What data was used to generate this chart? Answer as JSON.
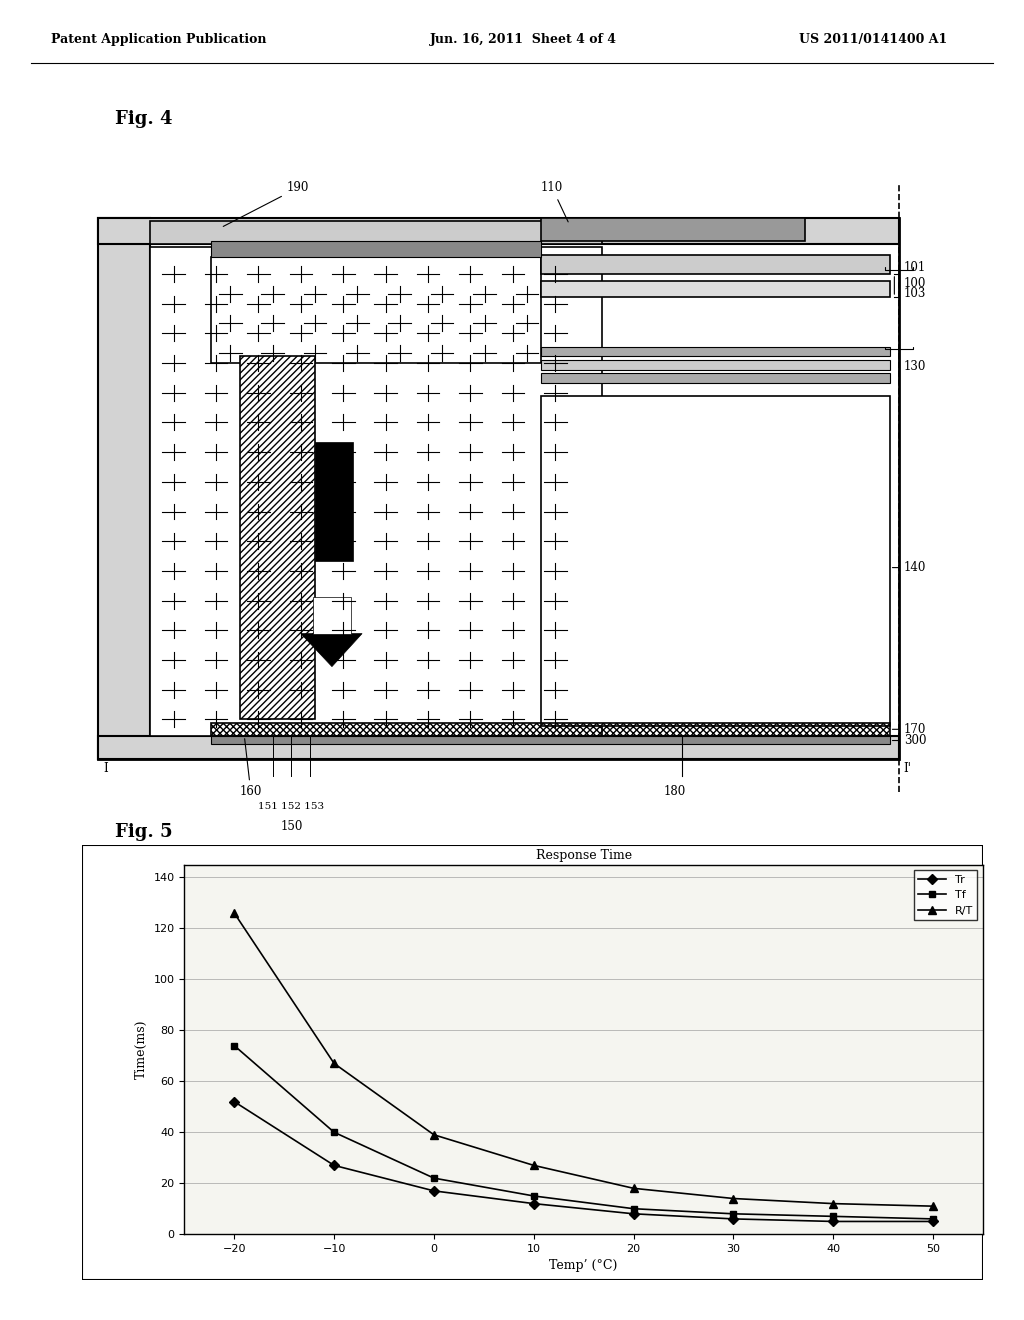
{
  "header_left": "Patent Application Publication",
  "header_mid": "Jun. 16, 2011  Sheet 4 of 4",
  "header_right": "US 2011/0141400 A1",
  "fig4_label": "Fig. 4",
  "fig5_label": "Fig. 5",
  "chart_title": "Response Time",
  "xlabel": "Temp’ (°C)",
  "ylabel": "Time(ms)",
  "x_ticks": [
    -20,
    -10,
    0,
    10,
    20,
    30,
    40,
    50
  ],
  "y_ticks": [
    0,
    20,
    40,
    60,
    80,
    100,
    120,
    140
  ],
  "Tr_x": [
    -20,
    -10,
    0,
    10,
    20,
    30,
    40,
    50
  ],
  "Tr_y": [
    52,
    27,
    17,
    12,
    8,
    6,
    5,
    5
  ],
  "Tf_x": [
    -20,
    -10,
    0,
    10,
    20,
    30,
    40,
    50
  ],
  "Tf_y": [
    74,
    40,
    22,
    15,
    10,
    8,
    7,
    6
  ],
  "RT_x": [
    -20,
    -10,
    0,
    10,
    20,
    30,
    40,
    50
  ],
  "RT_y": [
    126,
    67,
    39,
    27,
    18,
    14,
    12,
    11
  ],
  "bg_color": "#ffffff",
  "plot_bg": "#f5f5f0",
  "legend_entries": [
    "Tr",
    "Tf",
    "R/T"
  ]
}
